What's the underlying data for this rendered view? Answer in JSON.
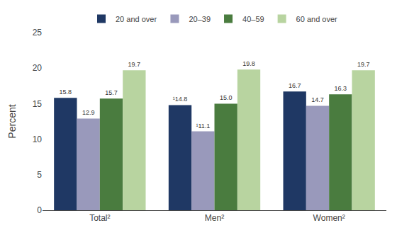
{
  "chart_data": {
    "type": "bar",
    "categories": [
      "Total²",
      "Men²",
      "Women²"
    ],
    "series": [
      {
        "name": "20 and over",
        "color": "#1f3864",
        "values": [
          15.8,
          14.8,
          16.7
        ],
        "value_labels": [
          "15.8",
          "¹14.8",
          "16.7"
        ]
      },
      {
        "name": "20–39",
        "color": "#9999bb",
        "values": [
          12.9,
          11.1,
          14.7
        ],
        "value_labels": [
          "12.9",
          "¹11.1",
          "14.7"
        ]
      },
      {
        "name": "40–59",
        "color": "#4a7c3f",
        "values": [
          15.7,
          15.0,
          16.3
        ],
        "value_labels": [
          "15.7",
          "15.0",
          "16.3"
        ]
      },
      {
        "name": "60 and over",
        "color": "#b8d4a0",
        "values": [
          19.7,
          19.8,
          19.7
        ],
        "value_labels": [
          "19.7",
          "19.8",
          "19.7"
        ]
      }
    ],
    "ylabel": "Percent",
    "ylim": [
      0,
      25
    ],
    "yticks": [
      0,
      5,
      10,
      15,
      20,
      25
    ],
    "grid": false,
    "legend": "top",
    "data_labels": true
  }
}
